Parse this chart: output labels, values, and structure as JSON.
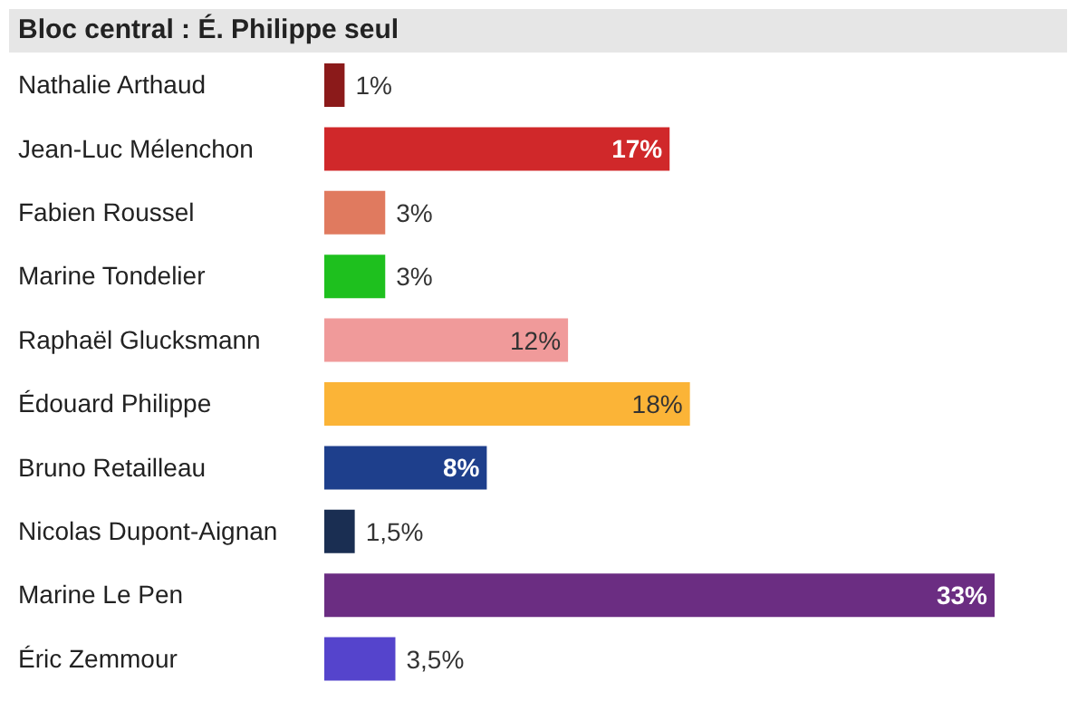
{
  "chart_data": {
    "type": "bar",
    "orientation": "horizontal",
    "title": "Bloc central : É. Philippe seul",
    "categories": [
      "Nathalie Arthaud",
      "Jean-Luc Mélenchon",
      "Fabien Roussel",
      "Marine Tondelier",
      "Raphaël Glucksmann",
      "Édouard Philippe",
      "Bruno Retailleau",
      "Nicolas Dupont-Aignan",
      "Marine Le Pen",
      "Éric Zemmour"
    ],
    "values": [
      1,
      17,
      3,
      3,
      12,
      18,
      8,
      1.5,
      33,
      3.5
    ],
    "value_labels": [
      "1%",
      "17%",
      "3%",
      "3%",
      "12%",
      "18%",
      "8%",
      "1,5%",
      "33%",
      "3,5%"
    ],
    "colors": [
      "#8b1a1a",
      "#d0282a",
      "#e07a5f",
      "#1ec01e",
      "#f09a9a",
      "#fbb437",
      "#1e3f8c",
      "#1a2e52",
      "#6b2d82",
      "#5544cc"
    ],
    "data_labels": true,
    "grid": false,
    "legend": false
  }
}
